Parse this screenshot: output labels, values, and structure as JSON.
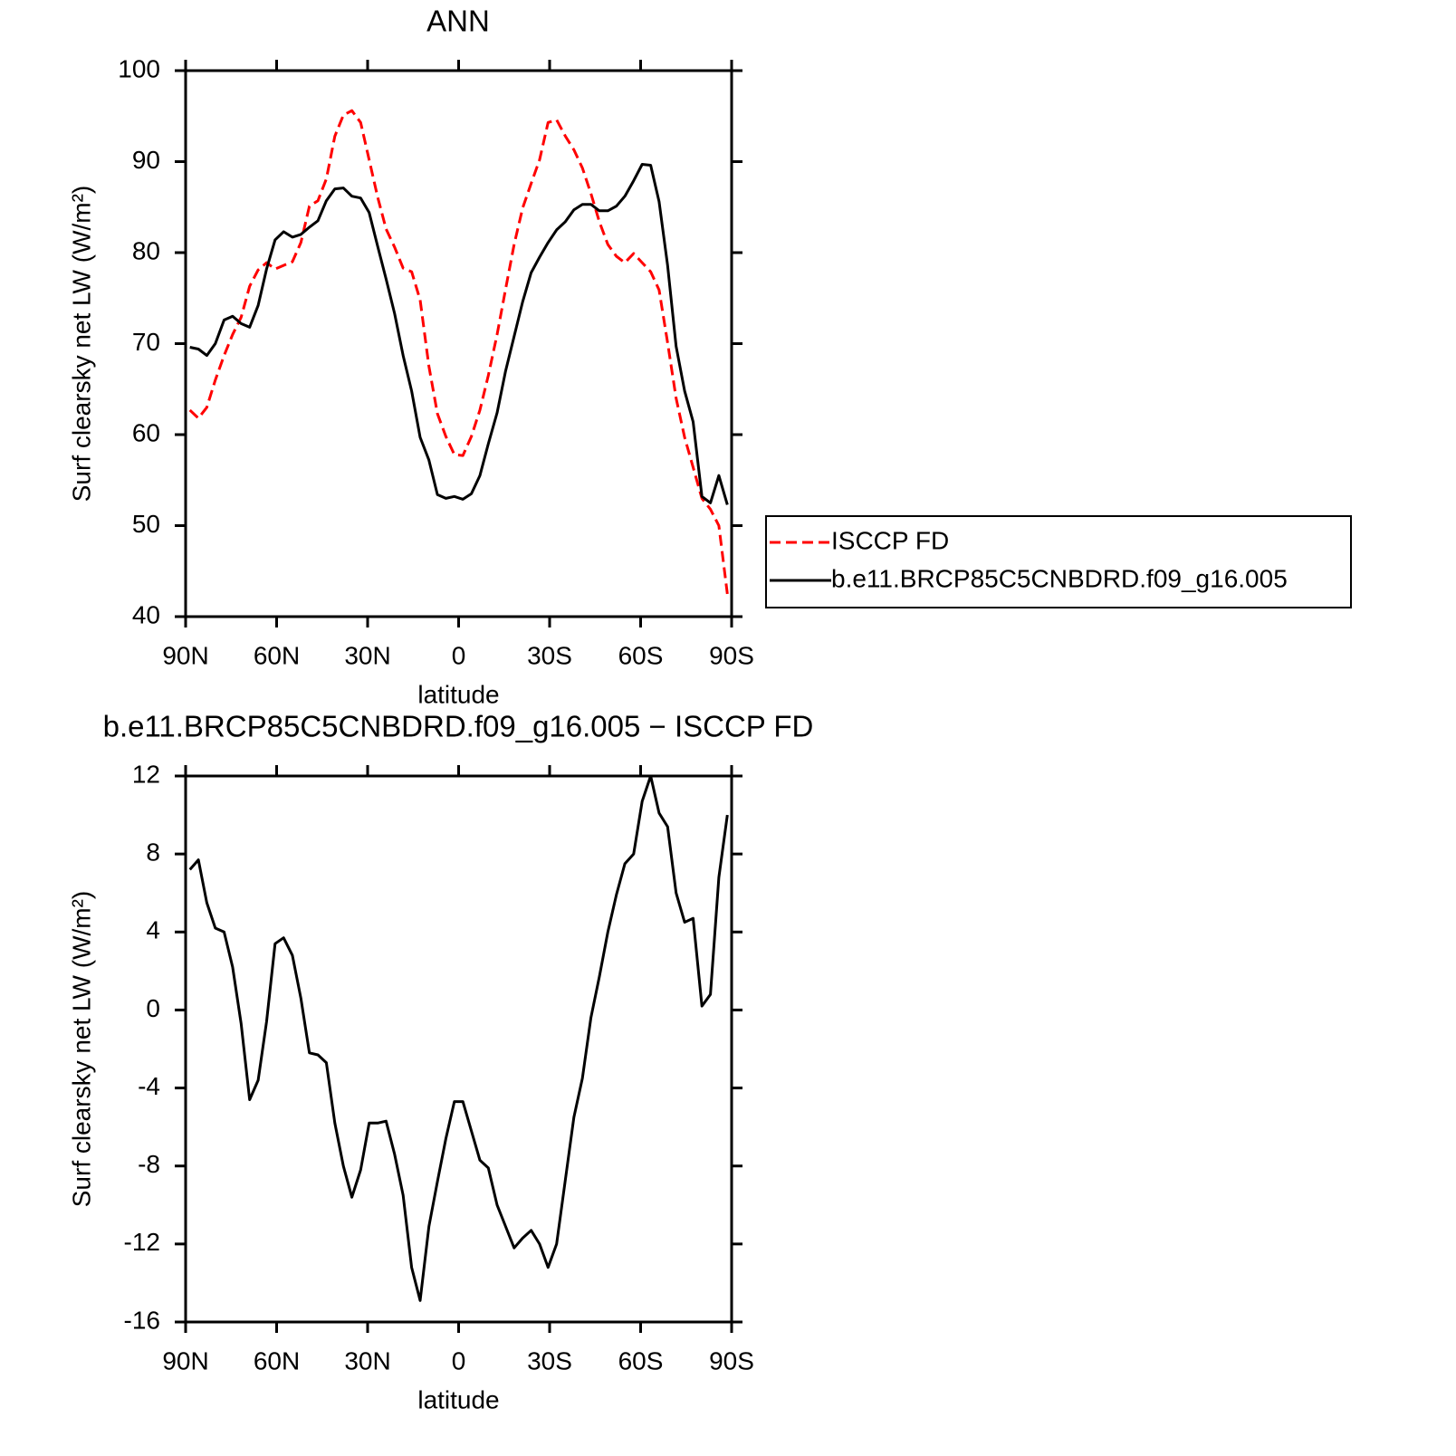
{
  "chart_data": [
    {
      "type": "line",
      "title": "ANN",
      "xlabel": "latitude",
      "ylabel": "Surf clearsky net LW (W/m²)",
      "xlim": [
        90,
        -90
      ],
      "xticks": [
        {
          "value": 90,
          "label": "90N"
        },
        {
          "value": 60,
          "label": "60N"
        },
        {
          "value": 30,
          "label": "30N"
        },
        0,
        {
          "value": -30,
          "label": "30S"
        },
        {
          "value": -60,
          "label": "60S"
        },
        {
          "value": -90,
          "label": "90S"
        }
      ],
      "ylim": [
        40,
        100
      ],
      "yticks": [
        40,
        50,
        60,
        70,
        80,
        90,
        100
      ],
      "legend": "outside-right",
      "x": [
        88.6,
        85.8,
        83.0,
        80.2,
        77.3,
        74.5,
        71.7,
        68.9,
        66.1,
        63.3,
        60.5,
        57.7,
        54.8,
        52.0,
        49.2,
        46.4,
        43.6,
        40.8,
        38.0,
        35.2,
        32.3,
        29.5,
        26.7,
        23.9,
        21.1,
        18.3,
        15.5,
        12.7,
        9.8,
        7.0,
        4.2,
        1.4,
        -1.4,
        -4.2,
        -7.0,
        -9.8,
        -12.7,
        -15.5,
        -18.3,
        -21.1,
        -23.9,
        -26.7,
        -29.5,
        -32.3,
        -35.2,
        -38.0,
        -40.8,
        -43.6,
        -46.4,
        -49.2,
        -52.0,
        -54.8,
        -57.7,
        -60.5,
        -63.3,
        -66.1,
        -68.9,
        -71.7,
        -74.5,
        -77.3,
        -80.2,
        -83.0,
        -85.8,
        -88.6
      ],
      "series": [
        {
          "name": "ISCCP FD",
          "color": "#ff0000",
          "dash": "dashed",
          "values": [
            62.7,
            61.8,
            63.0,
            66.0,
            68.7,
            71.0,
            72.9,
            76.3,
            78.1,
            78.9,
            78.2,
            78.6,
            79.0,
            81.1,
            85.1,
            85.7,
            88.1,
            92.8,
            95.1,
            95.6,
            94.3,
            90.2,
            86.1,
            82.6,
            80.6,
            78.3,
            77.9,
            74.8,
            67.5,
            62.3,
            59.8,
            57.8,
            57.7,
            59.8,
            62.7,
            66.5,
            71.0,
            76.0,
            80.9,
            84.9,
            87.6,
            90.2,
            94.3,
            94.6,
            92.8,
            91.3,
            89.3,
            86.5,
            83.4,
            80.9,
            79.6,
            78.9,
            79.9,
            78.9,
            77.9,
            75.9,
            70.1,
            64.0,
            59.7,
            56.4,
            53.0,
            51.8,
            50.0,
            42.5
          ]
        },
        {
          "name": "b.e11.BRCP85C5CNBDRD.f09_g16.005",
          "color": "#000000",
          "dash": "solid",
          "values": [
            69.6,
            69.4,
            68.7,
            70.0,
            72.6,
            73.0,
            72.2,
            71.8,
            74.2,
            78.2,
            81.4,
            82.3,
            81.7,
            82.0,
            82.8,
            83.5,
            85.7,
            87.0,
            87.1,
            86.2,
            86.0,
            84.4,
            80.7,
            77.1,
            73.3,
            68.7,
            64.8,
            59.7,
            57.2,
            53.4,
            53.0,
            53.2,
            52.9,
            53.5,
            55.5,
            59.0,
            62.4,
            67.0,
            70.8,
            74.6,
            77.8,
            79.5,
            81.1,
            82.5,
            83.4,
            84.7,
            85.3,
            85.3,
            84.6,
            84.6,
            85.1,
            86.2,
            87.9,
            89.7,
            89.6,
            85.6,
            78.6,
            69.7,
            64.8,
            61.4,
            53.2,
            52.5,
            55.5,
            52.3
          ]
        }
      ]
    },
    {
      "type": "line",
      "title": "b.e11.BRCP85C5CNBDRD.f09_g16.005 − ISCCP FD",
      "xlabel": "latitude",
      "ylabel": "Surf clearsky net LW (W/m²)",
      "xlim": [
        90,
        -90
      ],
      "xticks": [
        {
          "value": 90,
          "label": "90N"
        },
        {
          "value": 60,
          "label": "60N"
        },
        {
          "value": 30,
          "label": "30N"
        },
        0,
        {
          "value": -30,
          "label": "30S"
        },
        {
          "value": -60,
          "label": "60S"
        },
        {
          "value": -90,
          "label": "90S"
        }
      ],
      "ylim": [
        -16,
        12
      ],
      "yticks": [
        -16,
        -12,
        -8,
        -4,
        0,
        4,
        8,
        12
      ],
      "x": [
        88.6,
        85.8,
        83.0,
        80.2,
        77.3,
        74.5,
        71.7,
        68.9,
        66.1,
        63.3,
        60.5,
        57.7,
        54.8,
        52.0,
        49.2,
        46.4,
        43.6,
        40.8,
        38.0,
        35.2,
        32.3,
        29.5,
        26.7,
        23.9,
        21.1,
        18.3,
        15.5,
        12.7,
        9.8,
        7.0,
        4.2,
        1.4,
        -1.4,
        -4.2,
        -7.0,
        -9.8,
        -12.7,
        -15.5,
        -18.3,
        -21.1,
        -23.9,
        -26.7,
        -29.5,
        -32.3,
        -35.2,
        -38.0,
        -40.8,
        -43.6,
        -46.4,
        -49.2,
        -52.0,
        -54.8,
        -57.7,
        -60.5,
        -63.3,
        -66.1,
        -68.9,
        -71.7,
        -74.5,
        -77.3,
        -80.2,
        -83.0,
        -85.8,
        -88.6
      ],
      "color": "#000000",
      "values": [
        7.2,
        7.7,
        5.5,
        4.2,
        4.0,
        2.2,
        -0.7,
        -4.6,
        -3.6,
        -0.6,
        3.4,
        3.7,
        2.8,
        0.6,
        -2.2,
        -2.3,
        -2.7,
        -5.8,
        -8.0,
        -9.6,
        -8.2,
        -5.8,
        -5.8,
        -5.7,
        -7.4,
        -9.5,
        -13.2,
        -14.9,
        -11.1,
        -8.8,
        -6.6,
        -4.7,
        -4.7,
        -6.2,
        -7.7,
        -8.1,
        -10.0,
        -11.1,
        -12.2,
        -11.7,
        -11.3,
        -12.0,
        -13.2,
        -12.0,
        -8.7,
        -5.5,
        -3.5,
        -0.4,
        1.7,
        4.0,
        5.9,
        7.5,
        8.0,
        10.7,
        12.0,
        10.1,
        9.4,
        6.0,
        4.5,
        4.7,
        0.2,
        0.8,
        6.8,
        10.0
      ]
    }
  ]
}
